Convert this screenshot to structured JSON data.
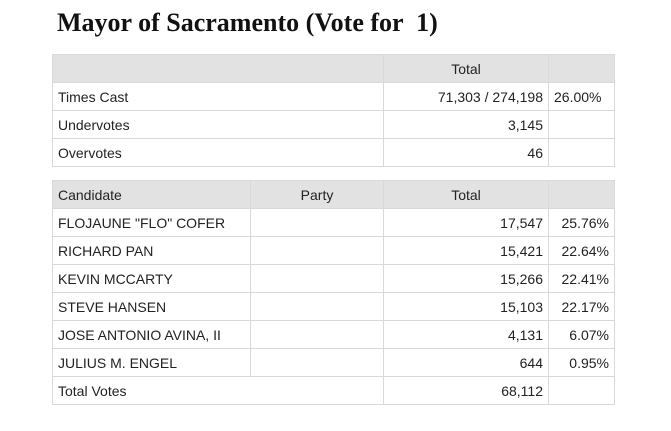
{
  "title": "Mayor of Sacramento (Vote for  1)",
  "summary": {
    "header_total": "Total",
    "rows": [
      {
        "label": "Times Cast",
        "total": "71,303 / 274,198",
        "pct": "26.00%"
      },
      {
        "label": "Undervotes",
        "total": "3,145",
        "pct": ""
      },
      {
        "label": "Overvotes",
        "total": "46",
        "pct": ""
      }
    ]
  },
  "results": {
    "headers": {
      "candidate": "Candidate",
      "party": "Party",
      "total": "Total"
    },
    "rows": [
      {
        "candidate": "FLOJAUNE \"FLO\" COFER",
        "party": "",
        "total": "17,547",
        "pct": "25.76%"
      },
      {
        "candidate": "RICHARD PAN",
        "party": "",
        "total": "15,421",
        "pct": "22.64%"
      },
      {
        "candidate": "KEVIN MCCARTY",
        "party": "",
        "total": "15,266",
        "pct": "22.41%"
      },
      {
        "candidate": "STEVE HANSEN",
        "party": "",
        "total": "15,103",
        "pct": "22.17%"
      },
      {
        "candidate": "JOSE ANTONIO AVINA, II",
        "party": "",
        "total": "4,131",
        "pct": "6.07%"
      },
      {
        "candidate": "JULIUS M. ENGEL",
        "party": "",
        "total": "644",
        "pct": "0.95%"
      }
    ],
    "footer": {
      "label": "Total Votes",
      "total": "68,112"
    }
  }
}
